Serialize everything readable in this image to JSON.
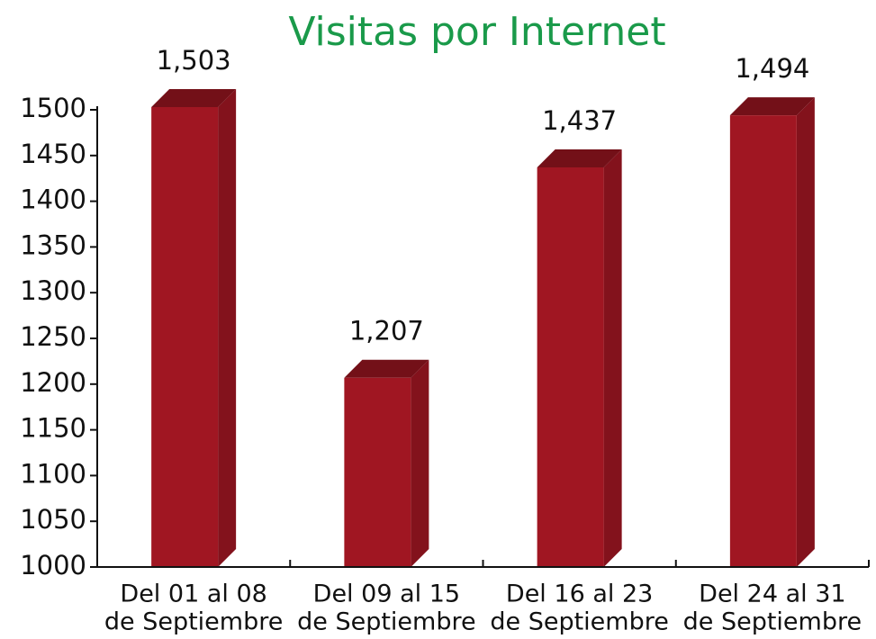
{
  "chart_data": {
    "type": "bar3d",
    "title": "Visitas por Internet",
    "categories": [
      [
        "Del 01 al 08",
        "de Septiembre"
      ],
      [
        "Del 09 al 15",
        "de Septiembre"
      ],
      [
        "Del 16 al 23",
        "de Septiembre"
      ],
      [
        "Del 24 al 31",
        "de Septiembre"
      ]
    ],
    "values": [
      1503,
      1207,
      1437,
      1494
    ],
    "value_labels": [
      "1,503",
      "1,207",
      "1,437",
      "1,494"
    ],
    "color": "#a01622",
    "ylim": [
      1000,
      1500
    ],
    "yticks": [
      1000,
      1050,
      1100,
      1150,
      1200,
      1250,
      1300,
      1350,
      1400,
      1450,
      1500
    ]
  }
}
